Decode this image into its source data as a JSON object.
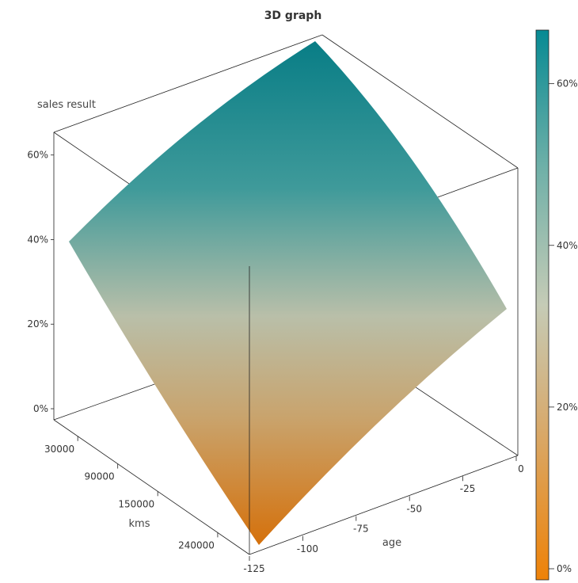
{
  "chart_data": {
    "type": "surface",
    "title": "3D graph",
    "xlabel": "age",
    "ylabel": "kms",
    "zlabel": "sales result",
    "x_ticks": [
      "-125",
      "-100",
      "-75",
      "-50",
      "-25",
      "0"
    ],
    "y_ticks": [
      "30000",
      "90000",
      "150000",
      "240000"
    ],
    "z_ticks": [
      "0%",
      "20%",
      "40%",
      "60%"
    ],
    "xlim": [
      -125,
      0
    ],
    "zlim": [
      0,
      0.68
    ],
    "corner_values": [
      {
        "age": -125,
        "kms": 270000,
        "sales": 0.0
      },
      {
        "age": -125,
        "kms": 0,
        "sales": 0.41
      },
      {
        "age": 0,
        "kms": 270000,
        "sales": 0.33
      },
      {
        "age": 0,
        "kms": 0,
        "sales": 0.68
      }
    ],
    "colorbar": {
      "ticks": [
        "0%",
        "20%",
        "40%",
        "60%"
      ],
      "tick_values": [
        0,
        0.2,
        0.4,
        0.6
      ],
      "range": [
        0,
        0.68
      ],
      "colors": [
        "#ee8208",
        "#d6b07a",
        "#bec8b4",
        "#6fb0a8",
        "#078a93"
      ]
    }
  }
}
